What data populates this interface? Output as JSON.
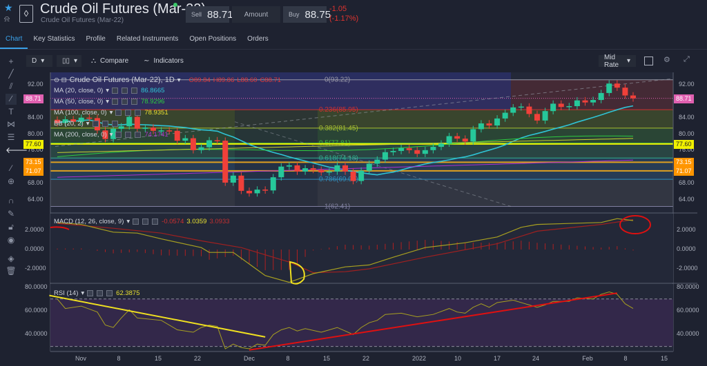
{
  "header": {
    "title": "Crude Oil Futures (Mar-22)",
    "subtitle": "Crude Oil Futures (Mar-22)",
    "sell_label": "Sell",
    "sell": "88.71",
    "amount_label": "Amount",
    "buy_label": "Buy",
    "buy": "88.75",
    "change": "-1.05",
    "change_pct": "(-1.17%)"
  },
  "tabs": [
    "Chart",
    "Key Statistics",
    "Profile",
    "Related Instruments",
    "Open Positions",
    "Orders"
  ],
  "toolbar": {
    "interval": "D",
    "compare": "Compare",
    "indicators": "Indicators",
    "rate": "Mid Rate"
  },
  "legend": {
    "symbol": "Crude Oil Futures (Mar-22), 1D",
    "o": "O89.84",
    "h": "H89.86",
    "l": "L88.60",
    "c": "C88.71",
    "studies": [
      {
        "label": "MA (20, close, 0)",
        "value": "86.8665",
        "color": "#2fc4d6"
      },
      {
        "label": "MA (50, close, 0)",
        "value": "78.9296",
        "color": "#2ecc40"
      },
      {
        "label": "MA (100, close, 0)",
        "value": "78.9351",
        "color": "#e8e030"
      },
      {
        "label": "BB (20, 2)",
        "value": "",
        "color": "#cfd3dc"
      },
      {
        "label": "MA (200, close, 0)",
        "value": "74.1741",
        "color": "#b030d0"
      }
    ],
    "macd": {
      "label": "MACD (12, 26, close, 9)",
      "hist": "-0.0574",
      "macd": "3.0359",
      "signal": "3.0933"
    },
    "rsi": {
      "label": "RSI (14)",
      "value": "62.3875"
    }
  },
  "price_axis": [
    "92.00",
    "84.00",
    "80.00",
    "76.00",
    "68.00",
    "64.00"
  ],
  "price_badges": [
    {
      "text": "88.71",
      "value": 88.71,
      "bg": "#e060b0",
      "fg": "#fff"
    },
    {
      "text": "77.60",
      "value": 77.6,
      "bg": "#f0f000",
      "fg": "#222"
    },
    {
      "text": "73.15",
      "value": 73.15,
      "bg": "#ff9500",
      "fg": "#fff"
    },
    {
      "text": "71.07",
      "value": 71.07,
      "bg": "#ff9500",
      "fg": "#fff"
    }
  ],
  "macd_axis": [
    "2.0000",
    "0.0000",
    "-2.0000"
  ],
  "rsi_axis": [
    "80.0000",
    "60.0000",
    "40.0000"
  ],
  "dates": [
    "Nov",
    "8",
    "15",
    "22",
    "Dec",
    "8",
    "15",
    "22",
    "2022",
    "10",
    "17",
    "24",
    "Feb",
    "8",
    "15"
  ],
  "chart_data": {
    "type": "candlestick",
    "ylim": [
      60,
      95
    ],
    "closes": [
      82.7,
      83.6,
      83.0,
      84.0,
      83.9,
      80.9,
      78.8,
      81.3,
      81.9,
      84.2,
      81.3,
      81.6,
      80.8,
      80.9,
      80.8,
      78.4,
      79.0,
      76.1,
      76.8,
      78.5,
      78.4,
      68.2,
      69.9,
      66.2,
      65.6,
      66.5,
      66.3,
      69.5,
      72.1,
      72.4,
      70.9,
      71.7,
      71.3,
      70.7,
      70.9,
      72.4,
      70.9,
      68.6,
      71.1,
      72.8,
      73.8,
      75.6,
      75.9,
      76.6,
      76.1,
      75.2,
      76.1,
      76.9,
      77.7,
      79.5,
      78.9,
      78.2,
      81.2,
      82.6,
      82.1,
      83.8,
      85.2,
      86.5,
      86.7,
      84.9,
      83.3,
      85.6,
      87.4,
      86.6,
      86.8,
      88.2,
      87.7,
      88.3,
      90.0,
      92.3,
      91.3,
      89.4,
      88.7
    ],
    "fib": [
      {
        "label": "0(93.22)",
        "v": 93.22,
        "c": "#9a9aa8"
      },
      {
        "label": "0.236(85.95)",
        "v": 85.95,
        "c": "#d03030"
      },
      {
        "label": "0.382(81.45)",
        "v": 81.45,
        "c": "#a8c030"
      },
      {
        "label": "0.5(77.81)",
        "v": 77.81,
        "c": "#40c040"
      },
      {
        "label": "0.618(74.18)",
        "v": 74.18,
        "c": "#30b090"
      },
      {
        "label": "0.786(69.00)",
        "v": 69.0,
        "c": "#3090c0"
      },
      {
        "label": "1(62.41)",
        "v": 62.41,
        "c": "#8080a0"
      }
    ],
    "hlines": [
      {
        "v": 77.6,
        "c": "#f0f000"
      },
      {
        "v": 73.15,
        "c": "#e0a020"
      },
      {
        "v": 71.07,
        "c": "#e0a020"
      }
    ],
    "macd_line": [
      [
        0,
        2.8
      ],
      [
        3,
        2.6
      ],
      [
        7,
        1.8
      ],
      [
        10,
        1.7
      ],
      [
        13,
        1.1
      ],
      [
        18,
        0.2
      ],
      [
        19,
        -0.3
      ],
      [
        22,
        -0.3
      ],
      [
        24,
        -1.5
      ],
      [
        26,
        -2.7
      ],
      [
        29,
        -3.4
      ],
      [
        32,
        -2.5
      ],
      [
        36,
        -1.8
      ],
      [
        39,
        -1.6
      ],
      [
        42,
        -0.8
      ],
      [
        46,
        0.2
      ],
      [
        51,
        0.7
      ],
      [
        55,
        1.3
      ],
      [
        58,
        2.3
      ],
      [
        60,
        2.6
      ],
      [
        64,
        2.7
      ],
      [
        68,
        2.8
      ],
      [
        70,
        3.2
      ],
      [
        72,
        3.0
      ]
    ],
    "signal_line": [
      [
        0,
        2.7
      ],
      [
        7,
        2.2
      ],
      [
        13,
        1.7
      ],
      [
        18,
        0.9
      ],
      [
        23,
        0.2
      ],
      [
        29,
        -1.3
      ],
      [
        32,
        -2.4
      ],
      [
        36,
        -2.3
      ],
      [
        39,
        -2.0
      ],
      [
        46,
        -0.8
      ],
      [
        55,
        0.6
      ],
      [
        60,
        1.9
      ],
      [
        68,
        2.6
      ],
      [
        72,
        3.1
      ]
    ],
    "rsi": [
      [
        0,
        70
      ],
      [
        1,
        62
      ],
      [
        3,
        64
      ],
      [
        5,
        59
      ],
      [
        6,
        48
      ],
      [
        7,
        46
      ],
      [
        8,
        54
      ],
      [
        9,
        61
      ],
      [
        10,
        54
      ],
      [
        13,
        52
      ],
      [
        15,
        44
      ],
      [
        17,
        42
      ],
      [
        18,
        46
      ],
      [
        19,
        48
      ],
      [
        20,
        47
      ],
      [
        21,
        28
      ],
      [
        22,
        32
      ],
      [
        23,
        29
      ],
      [
        24,
        28
      ],
      [
        25,
        32
      ],
      [
        26,
        31
      ],
      [
        27,
        40
      ],
      [
        28,
        44
      ],
      [
        29,
        46
      ],
      [
        30,
        43
      ],
      [
        31,
        45
      ],
      [
        33,
        42
      ],
      [
        35,
        46
      ],
      [
        36,
        43
      ],
      [
        37,
        40
      ],
      [
        38,
        46
      ],
      [
        39,
        50
      ],
      [
        40,
        52
      ],
      [
        41,
        57
      ],
      [
        43,
        58
      ],
      [
        45,
        55
      ],
      [
        47,
        57
      ],
      [
        49,
        62
      ],
      [
        50,
        59
      ],
      [
        51,
        58
      ],
      [
        52,
        63
      ],
      [
        53,
        66
      ],
      [
        54,
        63
      ],
      [
        55,
        67
      ],
      [
        56,
        68
      ],
      [
        57,
        69
      ],
      [
        59,
        65
      ],
      [
        60,
        63
      ],
      [
        61,
        65
      ],
      [
        62,
        68
      ],
      [
        64,
        68
      ],
      [
        65,
        71
      ],
      [
        67,
        70
      ],
      [
        68,
        74
      ],
      [
        69,
        76
      ],
      [
        70,
        74
      ],
      [
        71,
        66
      ],
      [
        72,
        62
      ]
    ],
    "rsi_trend": [
      {
        "from": [
          -1,
          73
        ],
        "to": [
          26,
          38
        ],
        "c": "#f0e020"
      },
      {
        "from": [
          24,
          27
        ],
        "to": [
          70,
          75
        ],
        "c": "#e01010"
      }
    ]
  }
}
